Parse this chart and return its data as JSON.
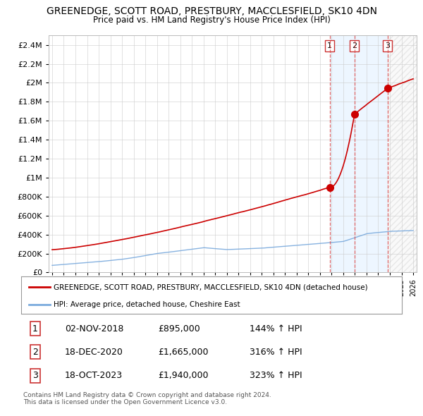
{
  "title": "GREENEDGE, SCOTT ROAD, PRESTBURY, MACCLESFIELD, SK10 4DN",
  "subtitle": "Price paid vs. HM Land Registry's House Price Index (HPI)",
  "ylim": [
    0,
    2500000
  ],
  "yticks": [
    0,
    200000,
    400000,
    600000,
    800000,
    1000000,
    1200000,
    1400000,
    1600000,
    1800000,
    2000000,
    2200000,
    2400000
  ],
  "hpi_color": "#7aaadd",
  "price_color": "#cc0000",
  "vline_color": "#dd4444",
  "purchases": [
    {
      "label": "1",
      "date": 2018.84,
      "price": 895000
    },
    {
      "label": "2",
      "date": 2020.96,
      "price": 1665000
    },
    {
      "label": "3",
      "date": 2023.8,
      "price": 1940000
    }
  ],
  "legend_house_label": "GREENEDGE, SCOTT ROAD, PRESTBURY, MACCLESFIELD, SK10 4DN (detached house)",
  "legend_hpi_label": "HPI: Average price, detached house, Cheshire East",
  "table_rows": [
    [
      "1",
      "02-NOV-2018",
      "£895,000",
      "144% ↑ HPI"
    ],
    [
      "2",
      "18-DEC-2020",
      "£1,665,000",
      "316% ↑ HPI"
    ],
    [
      "3",
      "18-OCT-2023",
      "£1,940,000",
      "323% ↑ HPI"
    ]
  ],
  "footer": "Contains HM Land Registry data © Crown copyright and database right 2024.\nThis data is licensed under the Open Government Licence v3.0.",
  "background_color": "#ffffff",
  "grid_color": "#cccccc",
  "shade_color": "#ddeeff",
  "xlim_left": 1995,
  "xlim_right": 2026
}
